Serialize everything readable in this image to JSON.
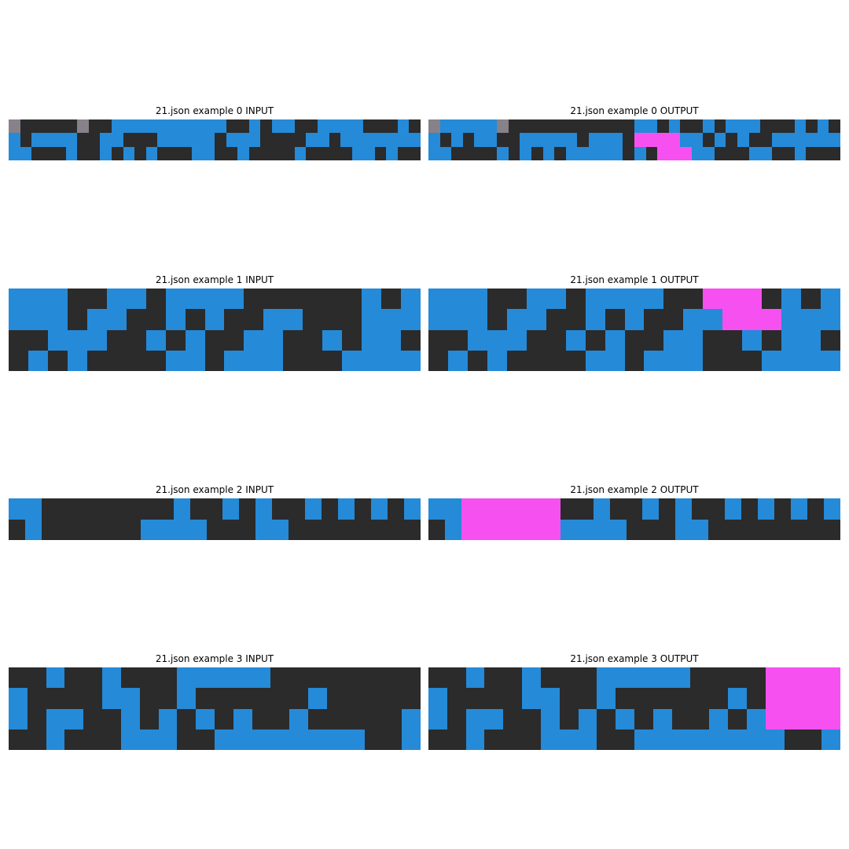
{
  "palette": {
    "0": "#2b2b2b",
    "1": "#258ad8",
    "5": "#878189",
    "6": "#f651f0"
  },
  "panels": [
    {
      "title": "21.json example 0 INPUT",
      "grid": [
        "500000500111111111100101100111100010",
        "101111001100011111011100001101111111",
        "110001001010100011001000010000110100"
      ]
    },
    {
      "title": "21.json example 0 OUTPUT",
      "grid": [
        "511111500000000000110100101110001010",
        "101011001111101114666611010100111111",
        "110000101010111110146661100011001000"
      ]
    },
    {
      "title": "21.json example 1 INPUT",
      "grid": [
        "111001101111000000101",
        "111011001010011000111",
        "001110010100110010110",
        "010100001101110001111"
      ]
    },
    {
      "title": "21.json example 1 OUTPUT",
      "grid": [
        "111001101111006660101",
        "111011001010011666111",
        "001110010100110010110",
        "010100001101110001111"
      ]
    },
    {
      "title": "21.json example 2 INPUT",
      "grid": [
        "1100000000100101001010101",
        "0100000011110001100000000"
      ]
    },
    {
      "title": "21.json example 2 OUTPUT",
      "grid": [
        "1166666600100101001010101",
        "0166666611110001100000000"
      ]
    },
    {
      "title": "21.json example 3 INPUT",
      "grid": [
        "0010010001111100000000",
        "1000011001000000100000",
        "1011001010101001000001",
        "0010001110011111111001"
      ]
    },
    {
      "title": "21.json example 3 OUTPUT",
      "grid": [
        "0010010001111100006666",
        "1000011001000000106666",
        "1011001010101001016666",
        "0010001110011111111001"
      ]
    }
  ]
}
